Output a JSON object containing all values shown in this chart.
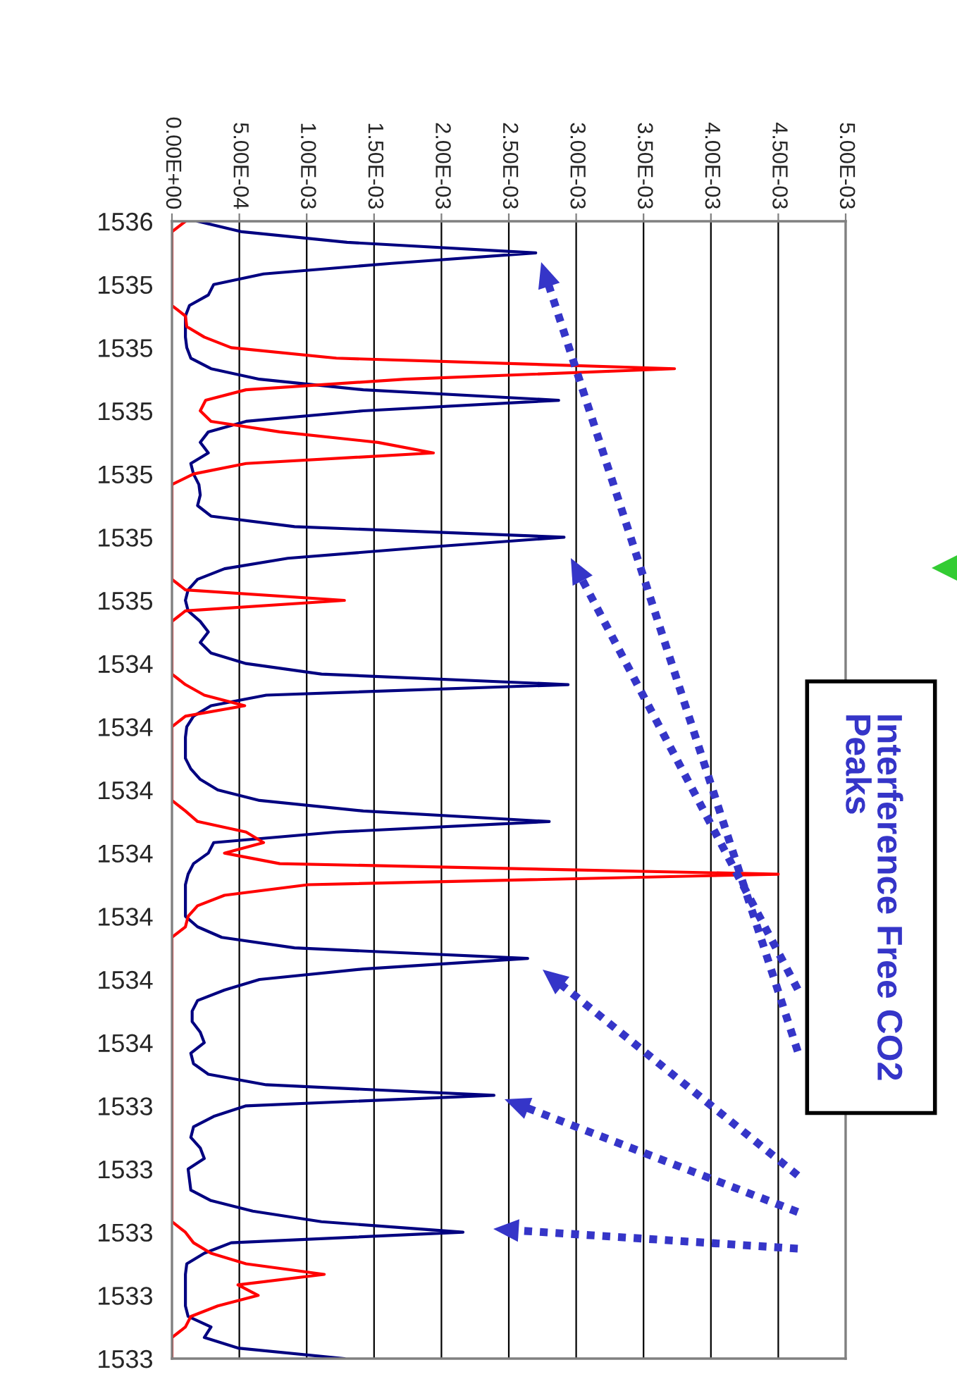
{
  "chart_data": {
    "type": "line",
    "orientation": "horizontal",
    "categories": [
      "1536",
      null,
      null,
      null,
      null,
      null,
      "1535",
      null,
      null,
      null,
      null,
      null,
      "1535",
      null,
      null,
      null,
      null,
      null,
      "1535",
      null,
      null,
      null,
      null,
      null,
      "1535",
      null,
      null,
      null,
      null,
      null,
      "1535",
      null,
      null,
      null,
      null,
      null,
      "1535",
      null,
      null,
      null,
      null,
      null,
      "1534",
      null,
      null,
      null,
      null,
      null,
      "1534",
      null,
      null,
      null,
      null,
      null,
      "1534",
      null,
      null,
      null,
      null,
      null,
      "1534",
      null,
      null,
      null,
      null,
      null,
      "1534",
      null,
      null,
      null,
      null,
      null,
      "1534",
      null,
      null,
      null,
      null,
      null,
      "1534",
      null,
      null,
      null,
      null,
      null,
      "1533",
      null,
      null,
      null,
      null,
      null,
      "1533",
      null,
      null,
      null,
      null,
      null,
      "1533",
      null,
      null,
      null,
      null,
      null,
      "1533",
      null,
      null,
      null,
      null,
      null,
      "1533"
    ],
    "series": [
      {
        "color": "#000080",
        "values": [
          0.00019,
          0.00052,
          0.0013,
          0.0027,
          0.00163,
          0.00068,
          0.00031,
          0.00027,
          0.00013,
          0.0001,
          0.0001,
          0.0001,
          0.00011,
          0.00014,
          0.00029,
          0.00065,
          0.00142,
          0.00287,
          0.00142,
          0.00055,
          0.00027,
          0.00021,
          0.00027,
          0.00014,
          0.00016,
          0.0002,
          0.00021,
          0.00019,
          0.00029,
          0.00091,
          0.00291,
          0.00184,
          0.00086,
          0.00039,
          0.00019,
          0.00012,
          0.0001,
          0.00012,
          0.00021,
          0.00027,
          0.00021,
          0.00029,
          0.00055,
          0.00111,
          0.00294,
          0.0007,
          0.00029,
          0.00016,
          0.00011,
          0.0001,
          0.0001,
          0.0001,
          0.00014,
          0.00021,
          0.00034,
          0.00065,
          0.00142,
          0.0028,
          0.00122,
          0.00031,
          0.00027,
          0.00016,
          0.00012,
          0.0001,
          0.0001,
          0.0001,
          0.0001,
          0.00019,
          0.00037,
          0.00091,
          0.00264,
          0.00142,
          0.00065,
          0.00039,
          0.00019,
          0.00015,
          0.00015,
          0.00021,
          0.00024,
          0.00014,
          0.00016,
          0.00027,
          0.0007,
          0.00239,
          0.00055,
          0.00031,
          0.00016,
          0.00014,
          0.00021,
          0.00024,
          0.00012,
          0.00013,
          0.00014,
          0.00029,
          0.0006,
          0.00111,
          0.00216,
          0.00044,
          0.00024,
          0.00011,
          0.0001,
          0.0001,
          0.0001,
          0.0001,
          0.00012,
          0.00029,
          0.00024,
          0.00049,
          0.00128
        ]
      },
      {
        "color": "#ff0000",
        "values": [
          0.0001,
          0.0,
          0.0,
          0.0,
          0.0,
          0.0,
          0.0,
          0.0,
          0.0,
          0.0001,
          0.00011,
          0.00024,
          0.00044,
          0.00122,
          0.00373,
          0.00173,
          0.00055,
          0.00025,
          0.00021,
          0.00029,
          0.0008,
          0.00153,
          0.00194,
          0.00055,
          0.00016,
          0.0,
          0.0,
          0.0,
          0.0,
          0.0,
          0.0,
          0.0,
          0.0,
          0.0,
          0.0,
          0.0001,
          0.00128,
          0.0001,
          0.0,
          0.0,
          0.0,
          0.0,
          0.0,
          0.0,
          0.0001,
          0.00024,
          0.00054,
          0.0001,
          0.0,
          0.0,
          0.0,
          0.0,
          0.0,
          0.0,
          0.0,
          0.0,
          0.0001,
          0.00019,
          0.00055,
          0.00068,
          0.00039,
          0.0008,
          0.0045,
          0.00101,
          0.00039,
          0.00019,
          0.00012,
          0.0001,
          0.0,
          0.0,
          0.0,
          0.0,
          0.0,
          0.0,
          0.0,
          0.0,
          0.0,
          0.0,
          0.0,
          0.0,
          0.0,
          0.0,
          0.0,
          0.0,
          0.0,
          0.0,
          0.0,
          0.0,
          0.0,
          0.0,
          0.0,
          0.0,
          0.0,
          0.0,
          0.0,
          0.0,
          0.0001,
          0.00016,
          0.00029,
          0.00055,
          0.00113,
          0.00049,
          0.00064,
          0.00034,
          0.00014,
          0.0001,
          0.0,
          0.0,
          0.0
        ]
      }
    ],
    "xlim": [
      0,
      0.005
    ],
    "xticks": [
      {
        "value": 0,
        "label": "0.00E+00"
      },
      {
        "value": 0.0005,
        "label": "5.00E-04"
      },
      {
        "value": 0.001,
        "label": "1.00E-03"
      },
      {
        "value": 0.0015,
        "label": "1.50E-03"
      },
      {
        "value": 0.002,
        "label": "2.00E-03"
      },
      {
        "value": 0.0025,
        "label": "2.50E-03"
      },
      {
        "value": 0.003,
        "label": "3.00E-03"
      },
      {
        "value": 0.0035,
        "label": "3.50E-03"
      },
      {
        "value": 0.004,
        "label": "4.00E-03"
      },
      {
        "value": 0.0045,
        "label": "4.50E-03"
      },
      {
        "value": 0.005,
        "label": "5.00E-03"
      }
    ],
    "grid": "x",
    "annotations": [
      "Interference Free CO2 Peaks"
    ]
  }
}
